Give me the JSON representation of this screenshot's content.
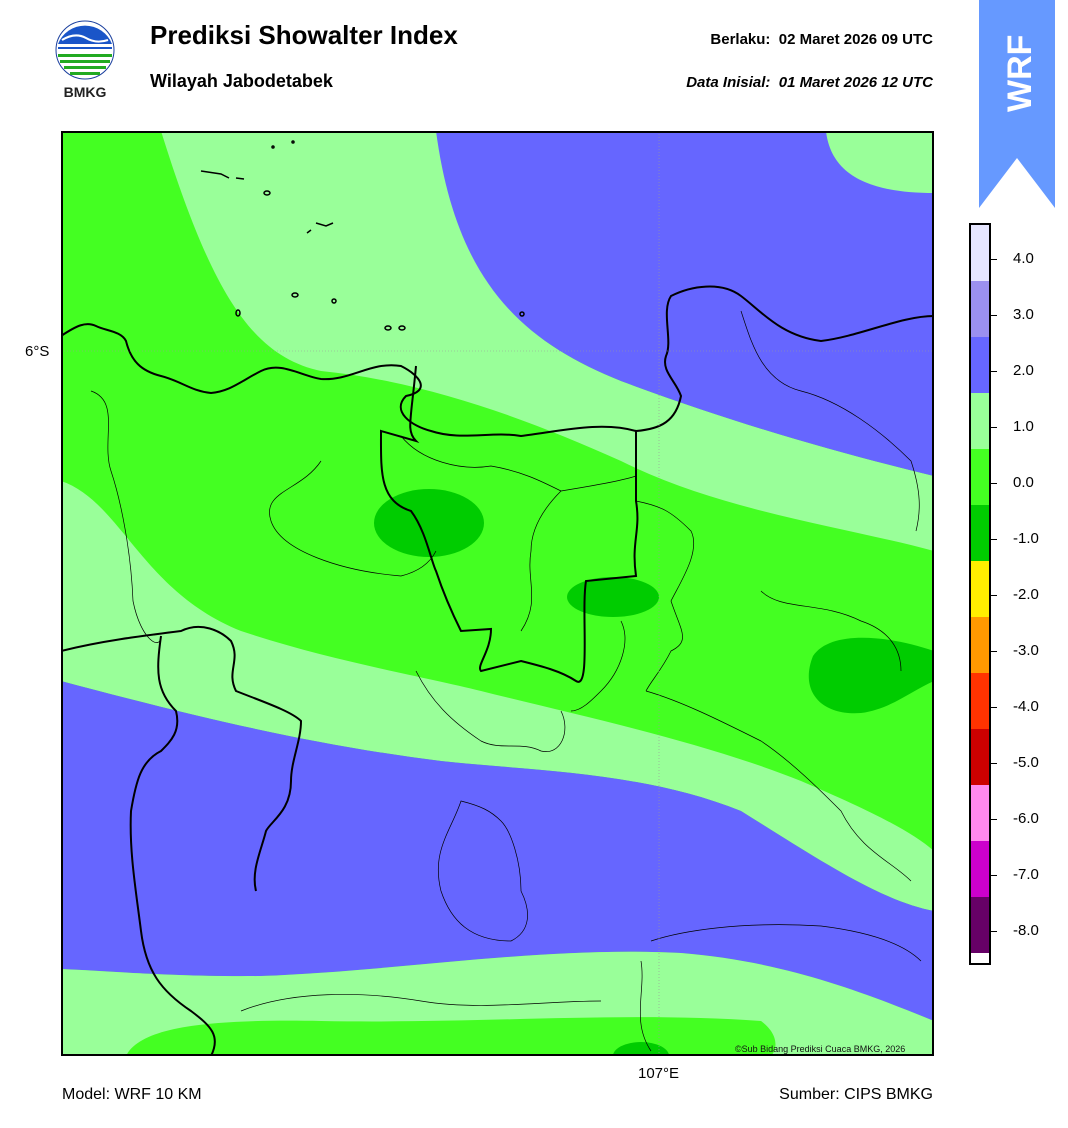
{
  "header": {
    "title": "Prediksi Showalter Index",
    "subtitle": "Wilayah Jabodetabek",
    "valid_label": "Berlaku:  02 Maret 2026 09 UTC",
    "init_label": "Data Inisial:  01 Maret 2026 12 UTC"
  },
  "logo": {
    "text": "BMKG"
  },
  "badge": {
    "text": "WRF",
    "color": "#6699ff"
  },
  "map": {
    "lat_label": "6°S",
    "lon_label": "107°E",
    "credit": "©Sub Bidang Prediksi Cuaca BMKG, 2026"
  },
  "footer": {
    "model": "Model: WRF 10 KM",
    "source": "Sumber: CIPS BMKG"
  },
  "colorbar": {
    "ticks": [
      "4.0",
      "3.0",
      "2.0",
      "1.0",
      "0.0",
      "-1.0",
      "-2.0",
      "-3.0",
      "-4.0",
      "-5.0",
      "-6.0",
      "-7.0",
      "-8.0"
    ],
    "colors": [
      "#e6e6ff",
      "#9b90f0",
      "#6666ff",
      "#99ff99",
      "#44ff22",
      "#00cc00",
      "#ffee00",
      "#ff9900",
      "#ff3300",
      "#cc0000",
      "#ff88ee",
      "#cc00cc",
      "#660066"
    ]
  }
}
